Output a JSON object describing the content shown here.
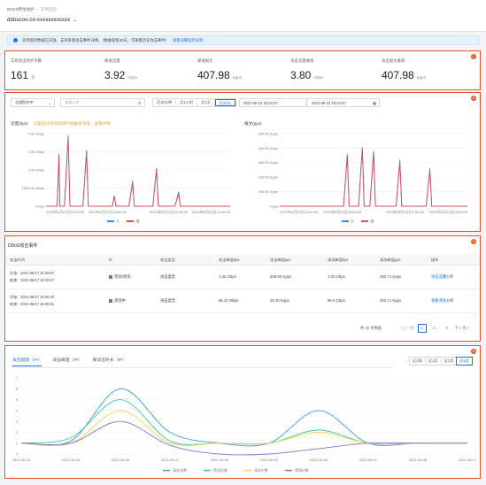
{
  "header": {
    "breadcrumb": [
      "DDoS原生防护",
      "实例监控"
    ],
    "instance_id": "ddoscoo-cn-xxxxxxxxxxxx"
  },
  "notice": {
    "text": "实例监控数据已开放，支持查看攻击事件详情。（数据保留30天，可查看历史攻击事件）",
    "link": "查看详细监控说明"
  },
  "stats": [
    {
      "label": "实例攻击防护次数",
      "value": "161",
      "unit": "次"
    },
    {
      "label": "峰值流量",
      "value": "3.92",
      "unit": "Gbps"
    },
    {
      "label": "峰值报文",
      "value": "407.98",
      "unit": "Kpps"
    },
    {
      "label": "攻击流量峰值",
      "value": "3.80",
      "unit": "Gbps"
    },
    {
      "label": "攻击报文峰值",
      "value": "407.98",
      "unit": "Kpps"
    }
  ],
  "filters": {
    "ip_select": "全部防护IP",
    "search_placeholder": "请输入IP",
    "quick_ranges": [
      "近30分钟",
      "近1小时",
      "近1天",
      "近30天"
    ],
    "active_range": "近30天",
    "start_time": "2021-06-23 15:04:47",
    "end_time": "2021-06-24 15:04:47"
  },
  "traffic_chart": {
    "title": "流量(bps)",
    "warning": "流量超过清洗阈值时会触发清洗，查看详情",
    "yticks": [
      "4.00 Gbps",
      "3.00 Gbps",
      "2.00 Gbps",
      "1000.00 Mbps",
      "0 bps"
    ],
    "xticks": [
      "2021年6月23日15:00:00",
      "2021年6月23日23:00:00",
      "2021年6月24日07:00:00",
      "2021年6月24日15:00:00"
    ],
    "legend": [
      "入",
      "出"
    ],
    "color_in": "#3b8ee6",
    "color_out": "#e04b55"
  },
  "packet_chart": {
    "title": "报文(pps)",
    "yticks": [
      "500.00 Kpps",
      "400.00 Kpps",
      "300.00 Kpps",
      "200.00 Kpps",
      "100.00 Kpps",
      "0 pps"
    ],
    "xticks": [
      "2021年6月23日15:00:00",
      "2021年6月23日23:00:00",
      "2021年6月24日07:00:00",
      "2021年6月24日15:00:00"
    ],
    "legend": [
      "入",
      "出"
    ]
  },
  "events": {
    "title": "DDoS攻击事件",
    "columns": [
      "攻击时间",
      "IP",
      "攻击类型",
      "攻击峰值bps",
      "攻击峰值pps",
      "清洗峰值bps",
      "清洗峰值pps",
      "操作"
    ],
    "rows": [
      {
        "start": "开始：2021-06/17 10:25:07",
        "end": "结束：2021-06/17 10:40:27",
        "ip": "黑洞/清洗",
        "type": "攻击类型",
        "bps": "1.02 Gbps",
        "pps": "208.80 Kpps",
        "clean_bps": "1.00 Gbps",
        "clean_pps": "280.71 Kpps",
        "action": "攻击流量分析"
      },
      {
        "start": "开始：2021-06/17 14:50:40",
        "end": "结束：2021-06/17 15:00:01",
        "ip": "清洗中",
        "type": "攻击类型",
        "bps": "96.20 Mbps",
        "pps": "25.30 Kpps",
        "clean_bps": "96.8 Gbps",
        "clean_pps": "293.71 Kpps",
        "action": "查看清洗分析"
      }
    ],
    "pager": {
      "total": "共 28 条数据",
      "prev": "〈 上一页",
      "pages": [
        "1",
        "2",
        "3"
      ],
      "next": "下一页 〉",
      "active": "1"
    }
  },
  "attack_trend": {
    "tabs": [
      "攻击趋势（IP）",
      "攻击峰值（IP）",
      "被攻击时长（IP）"
    ],
    "active_tab": "攻击趋势（IP）",
    "ranges": [
      "近1周",
      "近1月",
      "近3月",
      "近6月"
    ],
    "active_range": "近6月"
  },
  "chart_data": [
    {
      "type": "line",
      "title": "流量(bps)",
      "unit": "Gbps",
      "ylim": [
        0,
        4
      ],
      "series": [
        {
          "name": "入",
          "points": [
            [
              0.0,
              0
            ],
            [
              0.06,
              0
            ],
            [
              0.07,
              2.9
            ],
            [
              0.075,
              0
            ],
            [
              0.1,
              0
            ],
            [
              0.12,
              3.9
            ],
            [
              0.13,
              0
            ],
            [
              0.2,
              0
            ],
            [
              0.22,
              3.1
            ],
            [
              0.23,
              0
            ],
            [
              0.36,
              0
            ],
            [
              0.37,
              0.6
            ],
            [
              0.38,
              0
            ],
            [
              0.45,
              0
            ],
            [
              0.47,
              1.4
            ],
            [
              0.48,
              0
            ],
            [
              0.58,
              0
            ],
            [
              0.6,
              2.1
            ],
            [
              0.61,
              0
            ],
            [
              0.7,
              0
            ],
            [
              0.72,
              0.8
            ],
            [
              0.73,
              0
            ],
            [
              1.0,
              0
            ]
          ]
        },
        {
          "name": "出",
          "points": [
            [
              0.0,
              0
            ],
            [
              0.06,
              0
            ],
            [
              0.07,
              2.8
            ],
            [
              0.075,
              0
            ],
            [
              0.1,
              0
            ],
            [
              0.12,
              3.8
            ],
            [
              0.13,
              0
            ],
            [
              0.2,
              0
            ],
            [
              0.22,
              3.0
            ],
            [
              0.23,
              0
            ],
            [
              0.36,
              0
            ],
            [
              0.37,
              0.55
            ],
            [
              0.38,
              0
            ],
            [
              0.45,
              0
            ],
            [
              0.47,
              1.3
            ],
            [
              0.48,
              0
            ],
            [
              0.58,
              0
            ],
            [
              0.6,
              2.0
            ],
            [
              0.61,
              0
            ],
            [
              0.7,
              0
            ],
            [
              0.72,
              0.7
            ],
            [
              0.73,
              0
            ],
            [
              1.0,
              0
            ]
          ]
        }
      ]
    },
    {
      "type": "line",
      "title": "报文(pps)",
      "unit": "Kpps",
      "ylim": [
        0,
        500
      ],
      "series": [
        {
          "name": "入",
          "points": [
            [
              0.0,
              0
            ],
            [
              0.34,
              0
            ],
            [
              0.36,
              360
            ],
            [
              0.37,
              0
            ],
            [
              0.42,
              0
            ],
            [
              0.44,
              405
            ],
            [
              0.45,
              0
            ],
            [
              0.48,
              0
            ],
            [
              0.5,
              380
            ],
            [
              0.51,
              0
            ],
            [
              0.62,
              0
            ],
            [
              0.64,
              320
            ],
            [
              0.65,
              0
            ],
            [
              0.78,
              0
            ],
            [
              0.8,
              260
            ],
            [
              0.81,
              0
            ],
            [
              1.0,
              0
            ]
          ]
        },
        {
          "name": "出",
          "points": [
            [
              0.0,
              0
            ],
            [
              0.34,
              0
            ],
            [
              0.36,
              350
            ],
            [
              0.37,
              0
            ],
            [
              0.42,
              0
            ],
            [
              0.44,
              400
            ],
            [
              0.45,
              0
            ],
            [
              0.48,
              0
            ],
            [
              0.5,
              370
            ],
            [
              0.51,
              0
            ],
            [
              0.62,
              0
            ],
            [
              0.64,
              300
            ],
            [
              0.65,
              0
            ],
            [
              0.78,
              0
            ],
            [
              0.8,
              250
            ],
            [
              0.81,
              0
            ],
            [
              1.0,
              0
            ]
          ]
        }
      ]
    },
    {
      "type": "line",
      "ylim": [
        0,
        7
      ],
      "categories": [
        "2021-05-24",
        "2021-05-25",
        "2021-05-26",
        "2021-05-27",
        "2021-05-28",
        "2021-06-02",
        "2021-06-03",
        "2021-06-07",
        "2021-06-08",
        "2021-06-17"
      ],
      "yticks": [
        "7",
        "6",
        "5",
        "4",
        "3",
        "2",
        "1",
        "0"
      ],
      "series": [
        {
          "name": "清洗次数",
          "color": "#3b9be8",
          "values": [
            1,
            1.2,
            6,
            2,
            1,
            1,
            4,
            1,
            1,
            1
          ]
        },
        {
          "name": "黑洞次数",
          "color": "#3ec6a0",
          "values": [
            1,
            1.5,
            5,
            1.2,
            1,
            1,
            2.2,
            1,
            1,
            1
          ]
        },
        {
          "name": "清洗IP数",
          "color": "#f0d24a",
          "values": [
            1,
            1,
            4,
            1,
            1,
            1,
            2,
            1,
            1,
            1
          ]
        },
        {
          "name": "黑洞IP数",
          "color": "#8a6fd8",
          "values": [
            1,
            1,
            3,
            0.8,
            0,
            0,
            0.5,
            1,
            1,
            1
          ]
        }
      ]
    }
  ]
}
